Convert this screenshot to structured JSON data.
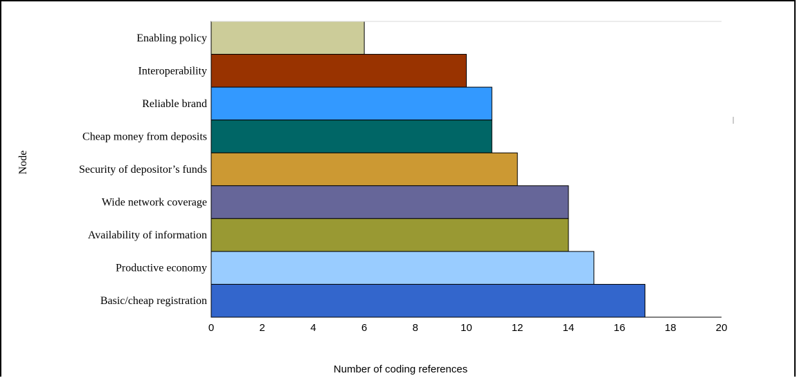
{
  "chart_data": {
    "type": "bar",
    "orientation": "horizontal",
    "title": "",
    "xlabel": "Number of coding references",
    "ylabel": "Node",
    "xlim": [
      0,
      20
    ],
    "xticks": [
      0,
      2,
      4,
      6,
      8,
      10,
      12,
      14,
      16,
      18,
      20
    ],
    "grid": false,
    "legend": "none",
    "categories": [
      "Enabling policy",
      "Interoperability",
      "Reliable brand",
      "Cheap money from deposits",
      "Security of depositor’s funds",
      "Wide network coverage",
      "Availability of information",
      "Productive economy",
      "Basic/cheap registration"
    ],
    "values": [
      6,
      10,
      11,
      11,
      12,
      14,
      14,
      15,
      17
    ],
    "colors": [
      "#CCCC99",
      "#993300",
      "#3399FF",
      "#006666",
      "#CC9933",
      "#666699",
      "#999933",
      "#99CCFF",
      "#3366CC"
    ]
  }
}
